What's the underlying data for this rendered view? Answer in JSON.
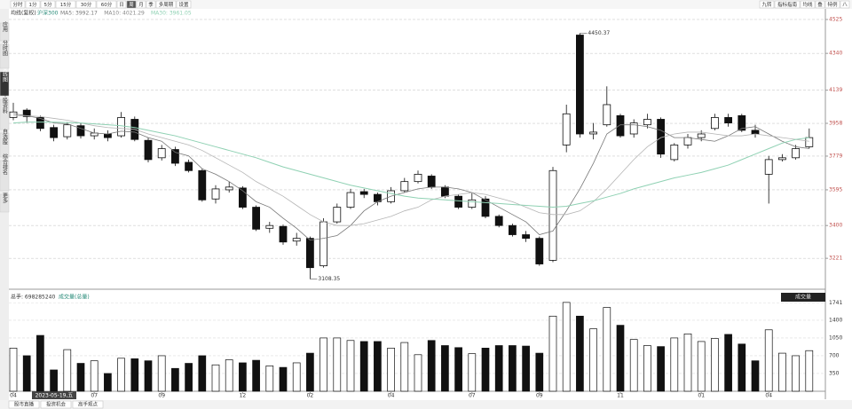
{
  "toolbar": {
    "periods": [
      "分时",
      "1分",
      "5分",
      "15分",
      "30分",
      "60分",
      "日",
      "周",
      "月",
      "季",
      "多周期",
      "设置"
    ],
    "tools": [
      "九转",
      "指标指南",
      "均线",
      "叠",
      "特例",
      "八"
    ]
  },
  "sidebar": {
    "tabs": [
      "应用",
      "分时图",
      "K线图",
      "个股资料",
      "自选股",
      "综合排名",
      "更多"
    ]
  },
  "bottom_tabs": [
    "股市直播",
    "投资机会",
    "高手观点"
  ],
  "chart_data": {
    "type": "candlestick",
    "title": "均线(复权)",
    "symbol": "沪深300",
    "ma_labels": [
      "MA5: 3992.17",
      "MA10: 4021.29",
      "MA30: 3961.05"
    ],
    "cursor_date": "2023-05-19,五",
    "annotations": [
      "4450.37",
      "3108.35"
    ],
    "categories": [
      "04",
      null,
      null,
      null,
      null,
      null,
      "07",
      null,
      null,
      null,
      null,
      "09",
      null,
      null,
      null,
      null,
      null,
      "12",
      null,
      null,
      null,
      null,
      "02",
      null,
      null,
      null,
      null,
      null,
      "04",
      null,
      null,
      null,
      null,
      null,
      "07",
      null,
      null,
      null,
      null,
      "09",
      null,
      null,
      null,
      null,
      null,
      "11",
      null,
      null,
      null,
      null,
      null,
      "01",
      null,
      null,
      null,
      null,
      "04",
      null,
      null,
      null
    ],
    "open": [
      3990,
      4030,
      3990,
      3935,
      3885,
      3945,
      3890,
      3900,
      3890,
      3980,
      3865,
      3770,
      3815,
      3745,
      3700,
      3545,
      3595,
      3605,
      3500,
      3385,
      3395,
      3315,
      3330,
      3180,
      3420,
      3500,
      3585,
      3570,
      3530,
      3590,
      3640,
      3670,
      3610,
      3560,
      3500,
      3545,
      3450,
      3400,
      3350,
      3330,
      3210,
      3840,
      4440,
      3900,
      3950,
      4000,
      3900,
      3950,
      3980,
      3760,
      3840,
      3880,
      3930,
      3990,
      4000,
      3920,
      3680,
      3760,
      3770,
      3830
    ],
    "high": [
      4070,
      4040,
      4000,
      3950,
      3965,
      3960,
      3930,
      3920,
      4020,
      3995,
      3880,
      3840,
      3830,
      3760,
      3710,
      3620,
      3640,
      3615,
      3510,
      3420,
      3405,
      3360,
      3340,
      3440,
      3520,
      3600,
      3600,
      3580,
      3610,
      3660,
      3700,
      3680,
      3620,
      3570,
      3580,
      3560,
      3460,
      3410,
      3370,
      3340,
      3720,
      4060,
      4450,
      3960,
      4160,
      4010,
      3980,
      4010,
      3990,
      3850,
      3900,
      3920,
      4010,
      4010,
      4010,
      3950,
      3780,
      3790,
      3840,
      3930
    ],
    "low": [
      3975,
      3960,
      3915,
      3860,
      3870,
      3875,
      3870,
      3860,
      3880,
      3860,
      3745,
      3755,
      3725,
      3690,
      3530,
      3520,
      3580,
      3490,
      3370,
      3360,
      3295,
      3290,
      3108,
      3170,
      3410,
      3490,
      3550,
      3510,
      3520,
      3580,
      3630,
      3600,
      3550,
      3490,
      3490,
      3440,
      3390,
      3340,
      3310,
      3180,
      3200,
      3800,
      3880,
      3870,
      3940,
      3880,
      3880,
      3930,
      3770,
      3750,
      3820,
      3860,
      3920,
      3940,
      3910,
      3880,
      3520,
      3750,
      3760,
      3820
    ],
    "close": [
      4020,
      3995,
      3930,
      3880,
      3950,
      3890,
      3905,
      3880,
      3990,
      3870,
      3760,
      3820,
      3740,
      3700,
      3540,
      3600,
      3610,
      3500,
      3380,
      3400,
      3310,
      3330,
      3170,
      3420,
      3500,
      3580,
      3570,
      3530,
      3590,
      3640,
      3680,
      3610,
      3560,
      3500,
      3540,
      3450,
      3400,
      3350,
      3330,
      3190,
      3700,
      4010,
      3900,
      3910,
      4060,
      3890,
      3960,
      3980,
      3790,
      3840,
      3880,
      3900,
      3990,
      3960,
      3920,
      3900,
      3760,
      3770,
      3820,
      3880
    ],
    "ma_series": [
      {
        "color": "#777777",
        "values": [
          4010,
          4000,
          3985,
          3960,
          3955,
          3930,
          3905,
          3900,
          3915,
          3910,
          3880,
          3860,
          3800,
          3780,
          3710,
          3680,
          3640,
          3590,
          3530,
          3500,
          3440,
          3385,
          3320,
          3330,
          3345,
          3400,
          3480,
          3530,
          3560,
          3580,
          3600,
          3610,
          3610,
          3600,
          3580,
          3540,
          3500,
          3460,
          3420,
          3350,
          3370,
          3480,
          3600,
          3740,
          3900,
          3950,
          3950,
          3940,
          3920,
          3880,
          3880,
          3870,
          3860,
          3890,
          3930,
          3940,
          3900,
          3860,
          3830,
          3820
        ]
      },
      {
        "color": "#b5b5b5",
        "values": [
          4000,
          4000,
          3995,
          3985,
          3975,
          3960,
          3945,
          3935,
          3930,
          3925,
          3900,
          3880,
          3860,
          3840,
          3810,
          3770,
          3730,
          3690,
          3640,
          3600,
          3560,
          3510,
          3460,
          3420,
          3400,
          3400,
          3410,
          3430,
          3450,
          3480,
          3500,
          3540,
          3560,
          3570,
          3580,
          3570,
          3550,
          3530,
          3500,
          3470,
          3460,
          3460,
          3480,
          3530,
          3600,
          3680,
          3760,
          3830,
          3880,
          3900,
          3910,
          3910,
          3900,
          3890,
          3890,
          3900,
          3890,
          3880,
          3870,
          3860
        ]
      },
      {
        "color": "#8fd1b3",
        "values": [
          3960,
          3965,
          3965,
          3965,
          3962,
          3960,
          3955,
          3950,
          3945,
          3935,
          3920,
          3905,
          3890,
          3870,
          3850,
          3830,
          3810,
          3790,
          3770,
          3745,
          3720,
          3700,
          3680,
          3660,
          3640,
          3620,
          3605,
          3590,
          3575,
          3560,
          3550,
          3545,
          3540,
          3535,
          3530,
          3525,
          3520,
          3515,
          3510,
          3505,
          3500,
          3505,
          3520,
          3535,
          3555,
          3575,
          3600,
          3620,
          3640,
          3660,
          3675,
          3690,
          3710,
          3730,
          3760,
          3790,
          3820,
          3850,
          3870,
          3880
        ]
      }
    ],
    "ylim": [
      3057,
      4583
    ],
    "yticks": [
      3221,
      3400,
      3595,
      3779,
      3958,
      4139,
      4340,
      4525
    ],
    "grid": true,
    "volume": {
      "title": "总手: 698285240",
      "subtitle": "成交量(总量)",
      "tag": "成交量",
      "values": [
        850,
        700,
        1100,
        420,
        820,
        550,
        600,
        350,
        650,
        640,
        600,
        700,
        450,
        550,
        700,
        520,
        620,
        560,
        610,
        500,
        470,
        560,
        750,
        1050,
        1050,
        1000,
        980,
        980,
        850,
        960,
        720,
        1000,
        900,
        860,
        740,
        850,
        900,
        900,
        890,
        750,
        1480,
        1750,
        1480,
        1230,
        1650,
        1300,
        1020,
        900,
        880,
        1050,
        1130,
        980,
        1040,
        1120,
        930,
        600,
        1210,
        750,
        700,
        800
      ],
      "ylim": [
        0,
        1800
      ],
      "yticks": [
        350,
        700,
        1050,
        1400,
        1741
      ]
    }
  }
}
